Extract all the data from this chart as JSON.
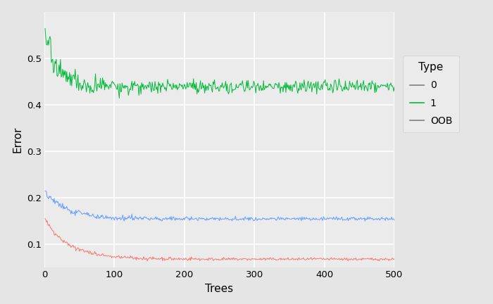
{
  "title": "",
  "xlabel": "Trees",
  "ylabel": "Error",
  "xlim": [
    0,
    500
  ],
  "ylim": [
    0.05,
    0.6
  ],
  "yticks": [
    0.1,
    0.2,
    0.3,
    0.4,
    0.5
  ],
  "xticks": [
    0,
    100,
    200,
    300,
    400,
    500
  ],
  "color_0": "#F8766D",
  "color_1": "#00BA38",
  "color_OOB": "#619CFF",
  "legend_line_0": "#7F7F7F",
  "legend_line_1": "#00BA38",
  "legend_line_OOB": "#7F7F7F",
  "legend_title": "Type",
  "bg_color": "#EBEBEB",
  "panel_bg": "#EBEBEB",
  "grid_color": "#FFFFFF",
  "fig_bg": "#E5E5E5",
  "n_trees": 500,
  "seed": 42,
  "figwidth": 7.0,
  "figheight": 4.32,
  "dpi": 100
}
